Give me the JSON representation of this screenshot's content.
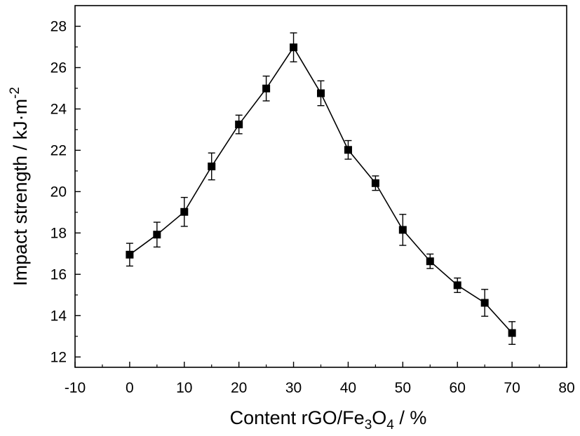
{
  "chart_data": {
    "type": "scatter",
    "xlabel": {
      "main": "Content rGO/Fe",
      "sub1": "3",
      "mid": "O",
      "sub2": "4",
      "end": " / %"
    },
    "ylabel": {
      "main": "Impact strength / kJ·m",
      "sup": "-2"
    },
    "xlim": [
      -10,
      80
    ],
    "ylim": [
      11.5,
      29
    ],
    "x_ticks": [
      -10,
      0,
      10,
      20,
      30,
      40,
      50,
      60,
      70,
      80
    ],
    "y_ticks": [
      12,
      14,
      16,
      18,
      20,
      22,
      24,
      26,
      28
    ],
    "grid": false,
    "series": [
      {
        "x": [
          0,
          5,
          10,
          15,
          20,
          25,
          30,
          35,
          40,
          45,
          50,
          55,
          60,
          65,
          70
        ],
        "y": [
          16.95,
          17.92,
          19.02,
          21.22,
          23.25,
          24.99,
          26.98,
          24.76,
          22.02,
          20.41,
          18.15,
          16.63,
          15.47,
          14.62,
          13.16
        ],
        "err": [
          0.55,
          0.6,
          0.7,
          0.65,
          0.45,
          0.6,
          0.7,
          0.6,
          0.45,
          0.35,
          0.75,
          0.35,
          0.35,
          0.65,
          0.55
        ],
        "line": true,
        "marker": "square",
        "color": "#000000"
      }
    ]
  }
}
